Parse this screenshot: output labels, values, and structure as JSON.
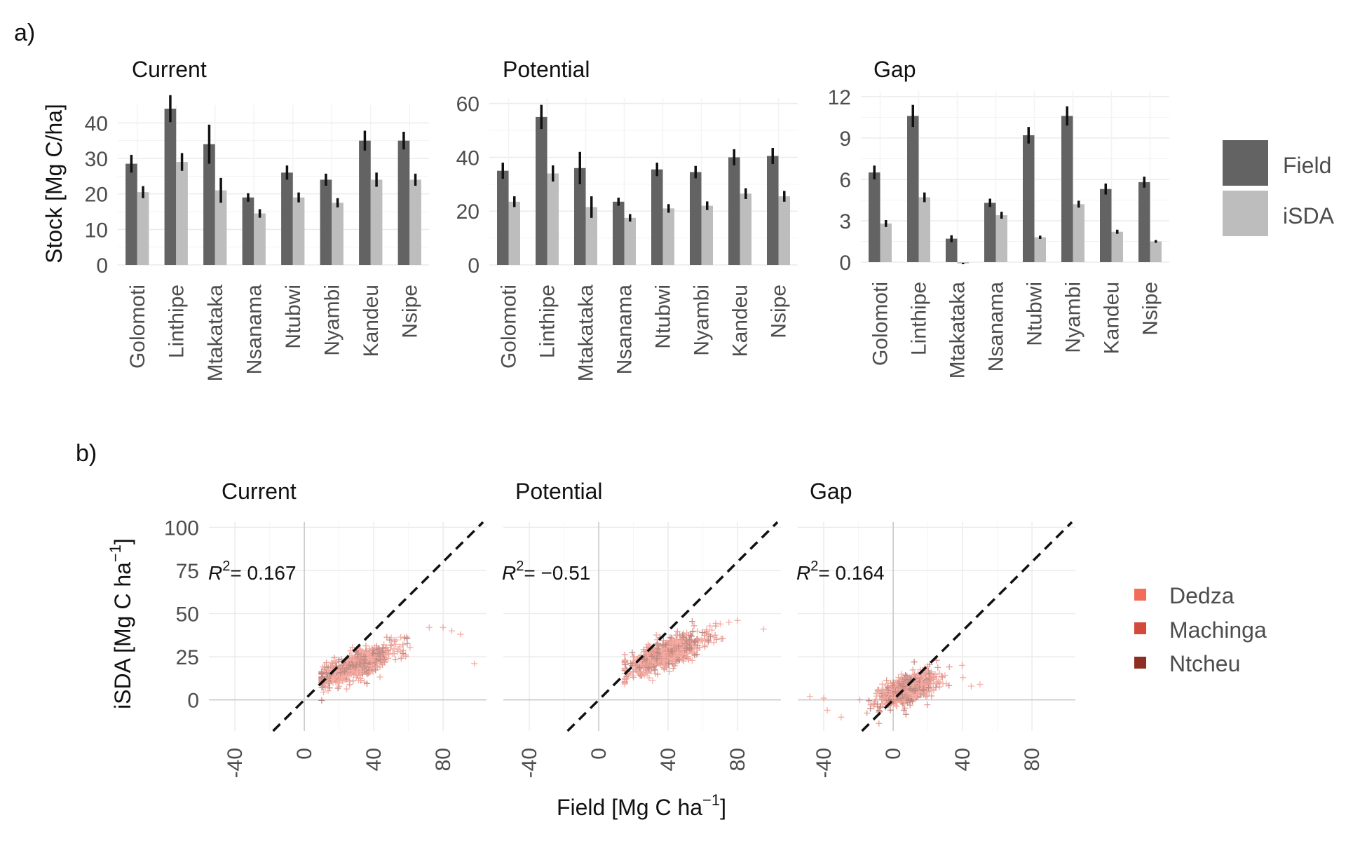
{
  "panel_labels": {
    "a": "a)",
    "b": "b)"
  },
  "colors": {
    "field": "#636363",
    "isda": "#bdbdbd",
    "errorbar": "#111111",
    "grid": "#ebebeb",
    "zero_line": "#c8c8c8",
    "dedza": "#f26b5b",
    "machinga": "#d34a3a",
    "ntcheu": "#8e2e22"
  },
  "chart_data": [
    {
      "id": "a-current",
      "type": "bar",
      "title": "Current",
      "ylabel": "Stock [Mg C/ha]",
      "xlabel": "",
      "categories": [
        "Golomoti",
        "Linthipe",
        "Mtakataka",
        "Nsanama",
        "Ntubwi",
        "Nyambi",
        "Kandeu",
        "Nsipe"
      ],
      "ylim": [
        0,
        45
      ],
      "yticks": [
        0,
        10,
        20,
        30,
        40
      ],
      "grid": true,
      "series": [
        {
          "name": "Field",
          "values": [
            28.5,
            44.0,
            34.0,
            19.0,
            26.0,
            24.0,
            35.0,
            35.0
          ],
          "errors": [
            2.5,
            3.8,
            5.5,
            1.2,
            2.0,
            1.7,
            2.8,
            2.5
          ]
        },
        {
          "name": "iSDA",
          "values": [
            20.5,
            29.0,
            21.0,
            14.5,
            19.0,
            17.5,
            24.0,
            24.0
          ],
          "errors": [
            1.7,
            2.5,
            3.5,
            1.2,
            1.4,
            1.3,
            2.0,
            1.7
          ]
        }
      ]
    },
    {
      "id": "a-potential",
      "type": "bar",
      "title": "Potential",
      "ylabel": "",
      "xlabel": "",
      "categories": [
        "Golomoti",
        "Linthipe",
        "Mtakataka",
        "Nsanama",
        "Ntubwi",
        "Nyambi",
        "Kandeu",
        "Nsipe"
      ],
      "ylim": [
        0,
        62
      ],
      "yticks": [
        0,
        20,
        40,
        60
      ],
      "grid": true,
      "series": [
        {
          "name": "Field",
          "values": [
            35.0,
            55.0,
            36.0,
            23.5,
            35.5,
            34.5,
            40.0,
            40.5
          ],
          "errors": [
            3.0,
            4.5,
            6.0,
            1.5,
            2.5,
            2.3,
            3.0,
            3.0
          ]
        },
        {
          "name": "iSDA",
          "values": [
            23.5,
            34.0,
            21.5,
            17.5,
            21.0,
            22.0,
            26.5,
            25.5
          ],
          "errors": [
            2.0,
            3.0,
            4.0,
            1.4,
            1.6,
            1.6,
            2.0,
            2.0
          ]
        }
      ]
    },
    {
      "id": "a-gap",
      "type": "bar",
      "title": "Gap",
      "ylabel": "",
      "xlabel": "",
      "categories": [
        "Golomoti",
        "Linthipe",
        "Mtakataka",
        "Nsanama",
        "Ntubwi",
        "Nyambi",
        "Kandeu",
        "Nsipe"
      ],
      "ylim": [
        0,
        12.4
      ],
      "yticks": [
        0,
        3,
        6,
        9,
        12
      ],
      "grid": true,
      "series": [
        {
          "name": "Field",
          "values": [
            6.5,
            10.6,
            1.7,
            4.3,
            9.2,
            10.6,
            5.3,
            5.8
          ],
          "errors": [
            0.5,
            0.8,
            0.25,
            0.3,
            0.6,
            0.7,
            0.4,
            0.4
          ]
        },
        {
          "name": "iSDA",
          "values": [
            2.8,
            4.7,
            -0.1,
            3.4,
            1.8,
            4.2,
            2.2,
            1.5
          ],
          "errors": [
            0.25,
            0.35,
            0.05,
            0.25,
            0.12,
            0.25,
            0.15,
            0.1
          ]
        }
      ]
    },
    {
      "id": "b-current",
      "type": "scatter",
      "title": "Current",
      "annotation": {
        "r2_label": "R",
        "r2_exp": "2",
        "r2_value": "= 0.167"
      },
      "xlim": [
        -55,
        105
      ],
      "ylim": [
        -18,
        103
      ],
      "xticks": [
        -40,
        0,
        40,
        80
      ],
      "yticks": [
        0,
        25,
        50,
        75,
        100
      ],
      "identity_line": true,
      "grid": true,
      "cloud": {
        "x_range": [
          10,
          75
        ],
        "x_mean": 30,
        "x_sd": 11,
        "intercept": 8.5,
        "slope": 0.38,
        "noise": 4,
        "n": 650,
        "outliers": [
          [
            80,
            42
          ],
          [
            90,
            38
          ],
          [
            98,
            21
          ],
          [
            72,
            42
          ],
          [
            85,
            40
          ]
        ]
      }
    },
    {
      "id": "b-potential",
      "type": "scatter",
      "title": "Potential",
      "annotation": {
        "r2_label": "R",
        "r2_exp": "2",
        "r2_value": "= −0.51"
      },
      "xlim": [
        -55,
        105
      ],
      "ylim": [
        -18,
        103
      ],
      "xticks": [
        -40,
        0,
        40,
        80
      ],
      "yticks": [
        0,
        25,
        50,
        75,
        100
      ],
      "identity_line": true,
      "grid": true,
      "cloud": {
        "x_range": [
          15,
          80
        ],
        "x_mean": 38,
        "x_sd": 12,
        "intercept": 10.5,
        "slope": 0.42,
        "noise": 4,
        "n": 650,
        "outliers": [
          [
            95,
            41
          ],
          [
            80,
            46
          ],
          [
            75,
            45
          ],
          [
            70,
            44
          ]
        ]
      }
    },
    {
      "id": "b-gap",
      "type": "scatter",
      "title": "Gap",
      "annotation": {
        "r2_label": "R",
        "r2_exp": "2",
        "r2_value": "= 0.164"
      },
      "xlim": [
        -55,
        105
      ],
      "ylim": [
        -18,
        103
      ],
      "xticks": [
        -40,
        0,
        40,
        80
      ],
      "yticks": [
        0,
        25,
        50,
        75,
        100
      ],
      "identity_line": true,
      "grid": true,
      "cloud": {
        "x_range": [
          -25,
          45
        ],
        "x_mean": 8,
        "x_sd": 9,
        "intercept": 3.5,
        "slope": 0.35,
        "noise": 4,
        "n": 650,
        "outliers": [
          [
            -48,
            2
          ],
          [
            -38,
            -6
          ],
          [
            -30,
            -10
          ],
          [
            45,
            8
          ],
          [
            50,
            9
          ],
          [
            -40,
            1
          ]
        ]
      }
    }
  ],
  "bar_axis": {
    "ylabel": "Stock [Mg C/ha]"
  },
  "scatter_axis": {
    "ylabel_main": "iSDA [Mg C ha",
    "ylabel_exp": "−1",
    "ylabel_close": "]",
    "xlabel_main": "Field [Mg C ha",
    "xlabel_exp": "−1",
    "xlabel_close": "]"
  },
  "legend_a": [
    {
      "name": "Field",
      "color": "#636363"
    },
    {
      "name": "iSDA",
      "color": "#bdbdbd"
    }
  ],
  "legend_b": [
    {
      "name": "Dedza",
      "color": "#f26b5b"
    },
    {
      "name": "Machinga",
      "color": "#d34a3a"
    },
    {
      "name": "Ntcheu",
      "color": "#8e2e22"
    }
  ]
}
